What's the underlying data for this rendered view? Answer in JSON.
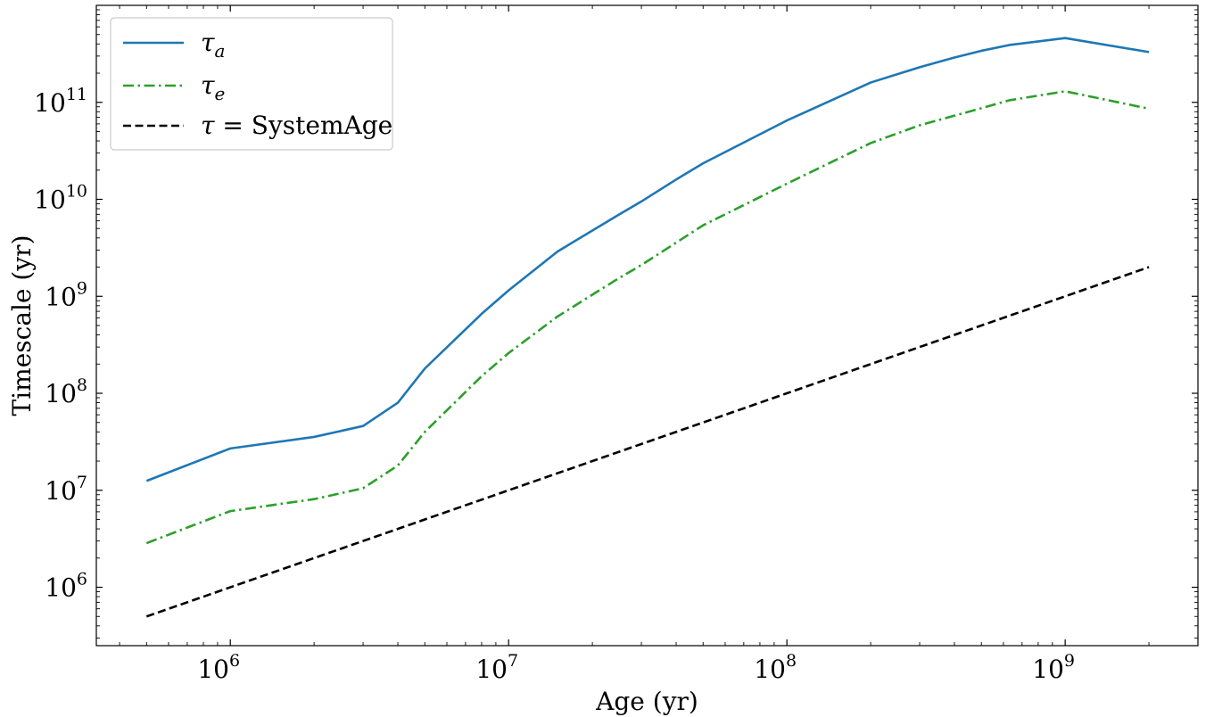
{
  "chart_data": {
    "type": "line",
    "xlabel": "Age (yr)",
    "ylabel": "Timescale (yr)",
    "xscale": "log",
    "yscale": "log",
    "xlim": [
      330000.0,
      3000000000.0
    ],
    "ylim": [
      250000.0,
      1000000000000.0
    ],
    "xticks": [
      {
        "value": 1000000.0,
        "base": "10",
        "exp": "6"
      },
      {
        "value": 10000000.0,
        "base": "10",
        "exp": "7"
      },
      {
        "value": 100000000.0,
        "base": "10",
        "exp": "8"
      },
      {
        "value": 1000000000.0,
        "base": "10",
        "exp": "9"
      }
    ],
    "yticks": [
      {
        "value": 1000000.0,
        "base": "10",
        "exp": "6"
      },
      {
        "value": 10000000.0,
        "base": "10",
        "exp": "7"
      },
      {
        "value": 100000000.0,
        "base": "10",
        "exp": "8"
      },
      {
        "value": 1000000000.0,
        "base": "10",
        "exp": "9"
      },
      {
        "value": 10000000000.0,
        "base": "10",
        "exp": "10"
      },
      {
        "value": 100000000000.0,
        "base": "10",
        "exp": "11"
      }
    ],
    "grid": false,
    "legend_position": "top-left",
    "series": [
      {
        "name": "τ_a",
        "legend_symbol": "τ",
        "legend_sub": "a",
        "color": "#1f77b4",
        "style": "solid",
        "x": [
          500000.0,
          1000000.0,
          2000000.0,
          3000000.0,
          4000000.0,
          5000000.0,
          8000000.0,
          10000000.0,
          15000000.0,
          25000000.0,
          30000000.0,
          40000000.0,
          50000000.0,
          100000000.0,
          200000000.0,
          300000000.0,
          400000000.0,
          500000000.0,
          630000000.0,
          1000000000.0,
          2000000000.0
        ],
        "y": [
          12500000.0,
          27000000.0,
          35500000.0,
          46000000.0,
          80000000.0,
          180000000.0,
          660000000.0,
          1150000000.0,
          2900000000.0,
          7000000000.0,
          9500000000.0,
          16000000000.0,
          23500000000.0,
          65000000000.0,
          160000000000.0,
          230000000000.0,
          290000000000.0,
          340000000000.0,
          390000000000.0,
          460000000000.0,
          330000000000.0
        ]
      },
      {
        "name": "τ_e",
        "legend_symbol": "τ",
        "legend_sub": "e",
        "color": "#2ca02c",
        "style": "dashdot",
        "x": [
          500000.0,
          1000000.0,
          2000000.0,
          3000000.0,
          4000000.0,
          5000000.0,
          8000000.0,
          10000000.0,
          15000000.0,
          25000000.0,
          30000000.0,
          50000000.0,
          100000000.0,
          200000000.0,
          300000000.0,
          500000000.0,
          630000000.0,
          1000000000.0,
          2000000000.0
        ],
        "y": [
          2850000.0,
          6100000.0,
          8100000.0,
          10500000.0,
          18000000.0,
          40000000.0,
          150000000.0,
          260000000.0,
          620000000.0,
          1550000000.0,
          2100000000.0,
          5400000000.0,
          14500000000.0,
          38000000000.0,
          58000000000.0,
          87000000000.0,
          105000000000.0,
          130000000000.0,
          86000000000.0
        ]
      },
      {
        "name": "τ = SystemAge",
        "legend_symbol": "τ",
        "legend_rest": " = SystemAge",
        "color": "#000000",
        "style": "dashed",
        "x": [
          500000.0,
          2000000000.0
        ],
        "y": [
          500000.0,
          2000000000.0
        ]
      }
    ]
  }
}
